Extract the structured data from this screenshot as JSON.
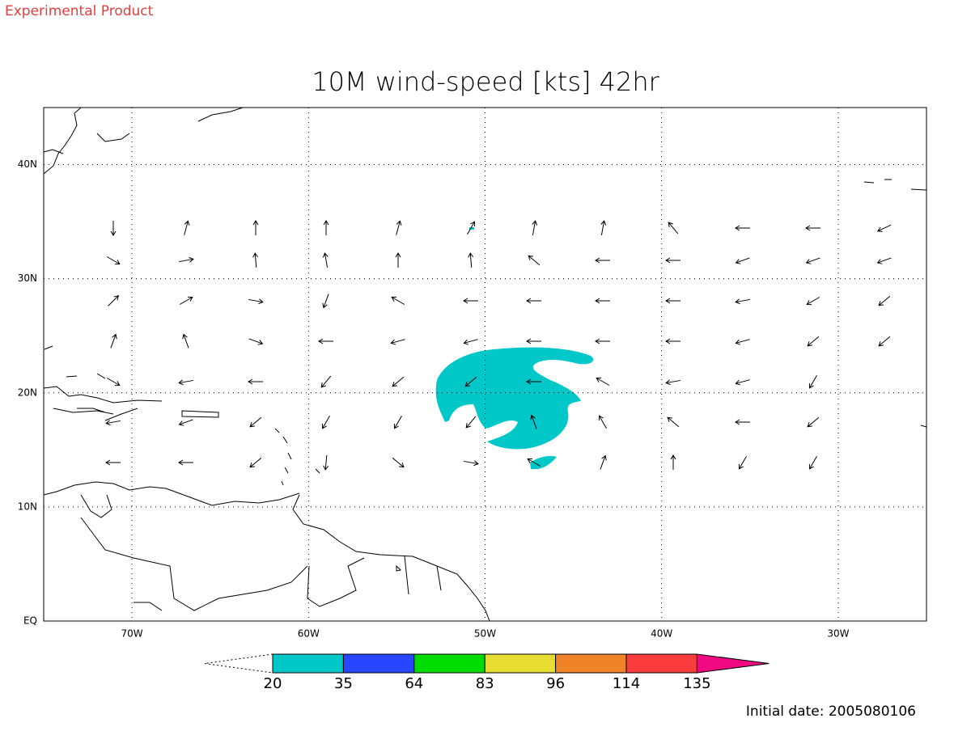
{
  "header": {
    "note": "Experimental Product"
  },
  "map": {
    "title": "10M wind-speed [kts] 42hr",
    "lonlim": [
      -75,
      -25
    ],
    "latlim": [
      0,
      45
    ],
    "lon_ticks": [
      {
        "value": -70,
        "label": "70W"
      },
      {
        "value": -60,
        "label": "60W"
      },
      {
        "value": -50,
        "label": "50W"
      },
      {
        "value": -40,
        "label": "40W"
      },
      {
        "value": -30,
        "label": "30W"
      }
    ],
    "lat_ticks": [
      {
        "value": 0,
        "label": "EQ"
      },
      {
        "value": 10,
        "label": "10N"
      },
      {
        "value": 20,
        "label": "20N"
      },
      {
        "value": 30,
        "label": "30N"
      },
      {
        "value": 40,
        "label": "40N"
      }
    ],
    "grid": true
  },
  "colorbar": {
    "levels": [
      20,
      35,
      64,
      83,
      96,
      114,
      135
    ],
    "colors": [
      "#00c8c8",
      "#2846ff",
      "#00dc00",
      "#e6dc32",
      "#f08228",
      "#fa3c3c",
      "#f00a82"
    ]
  },
  "footer": {
    "initial_date": "Initial date: 2005080106"
  }
}
